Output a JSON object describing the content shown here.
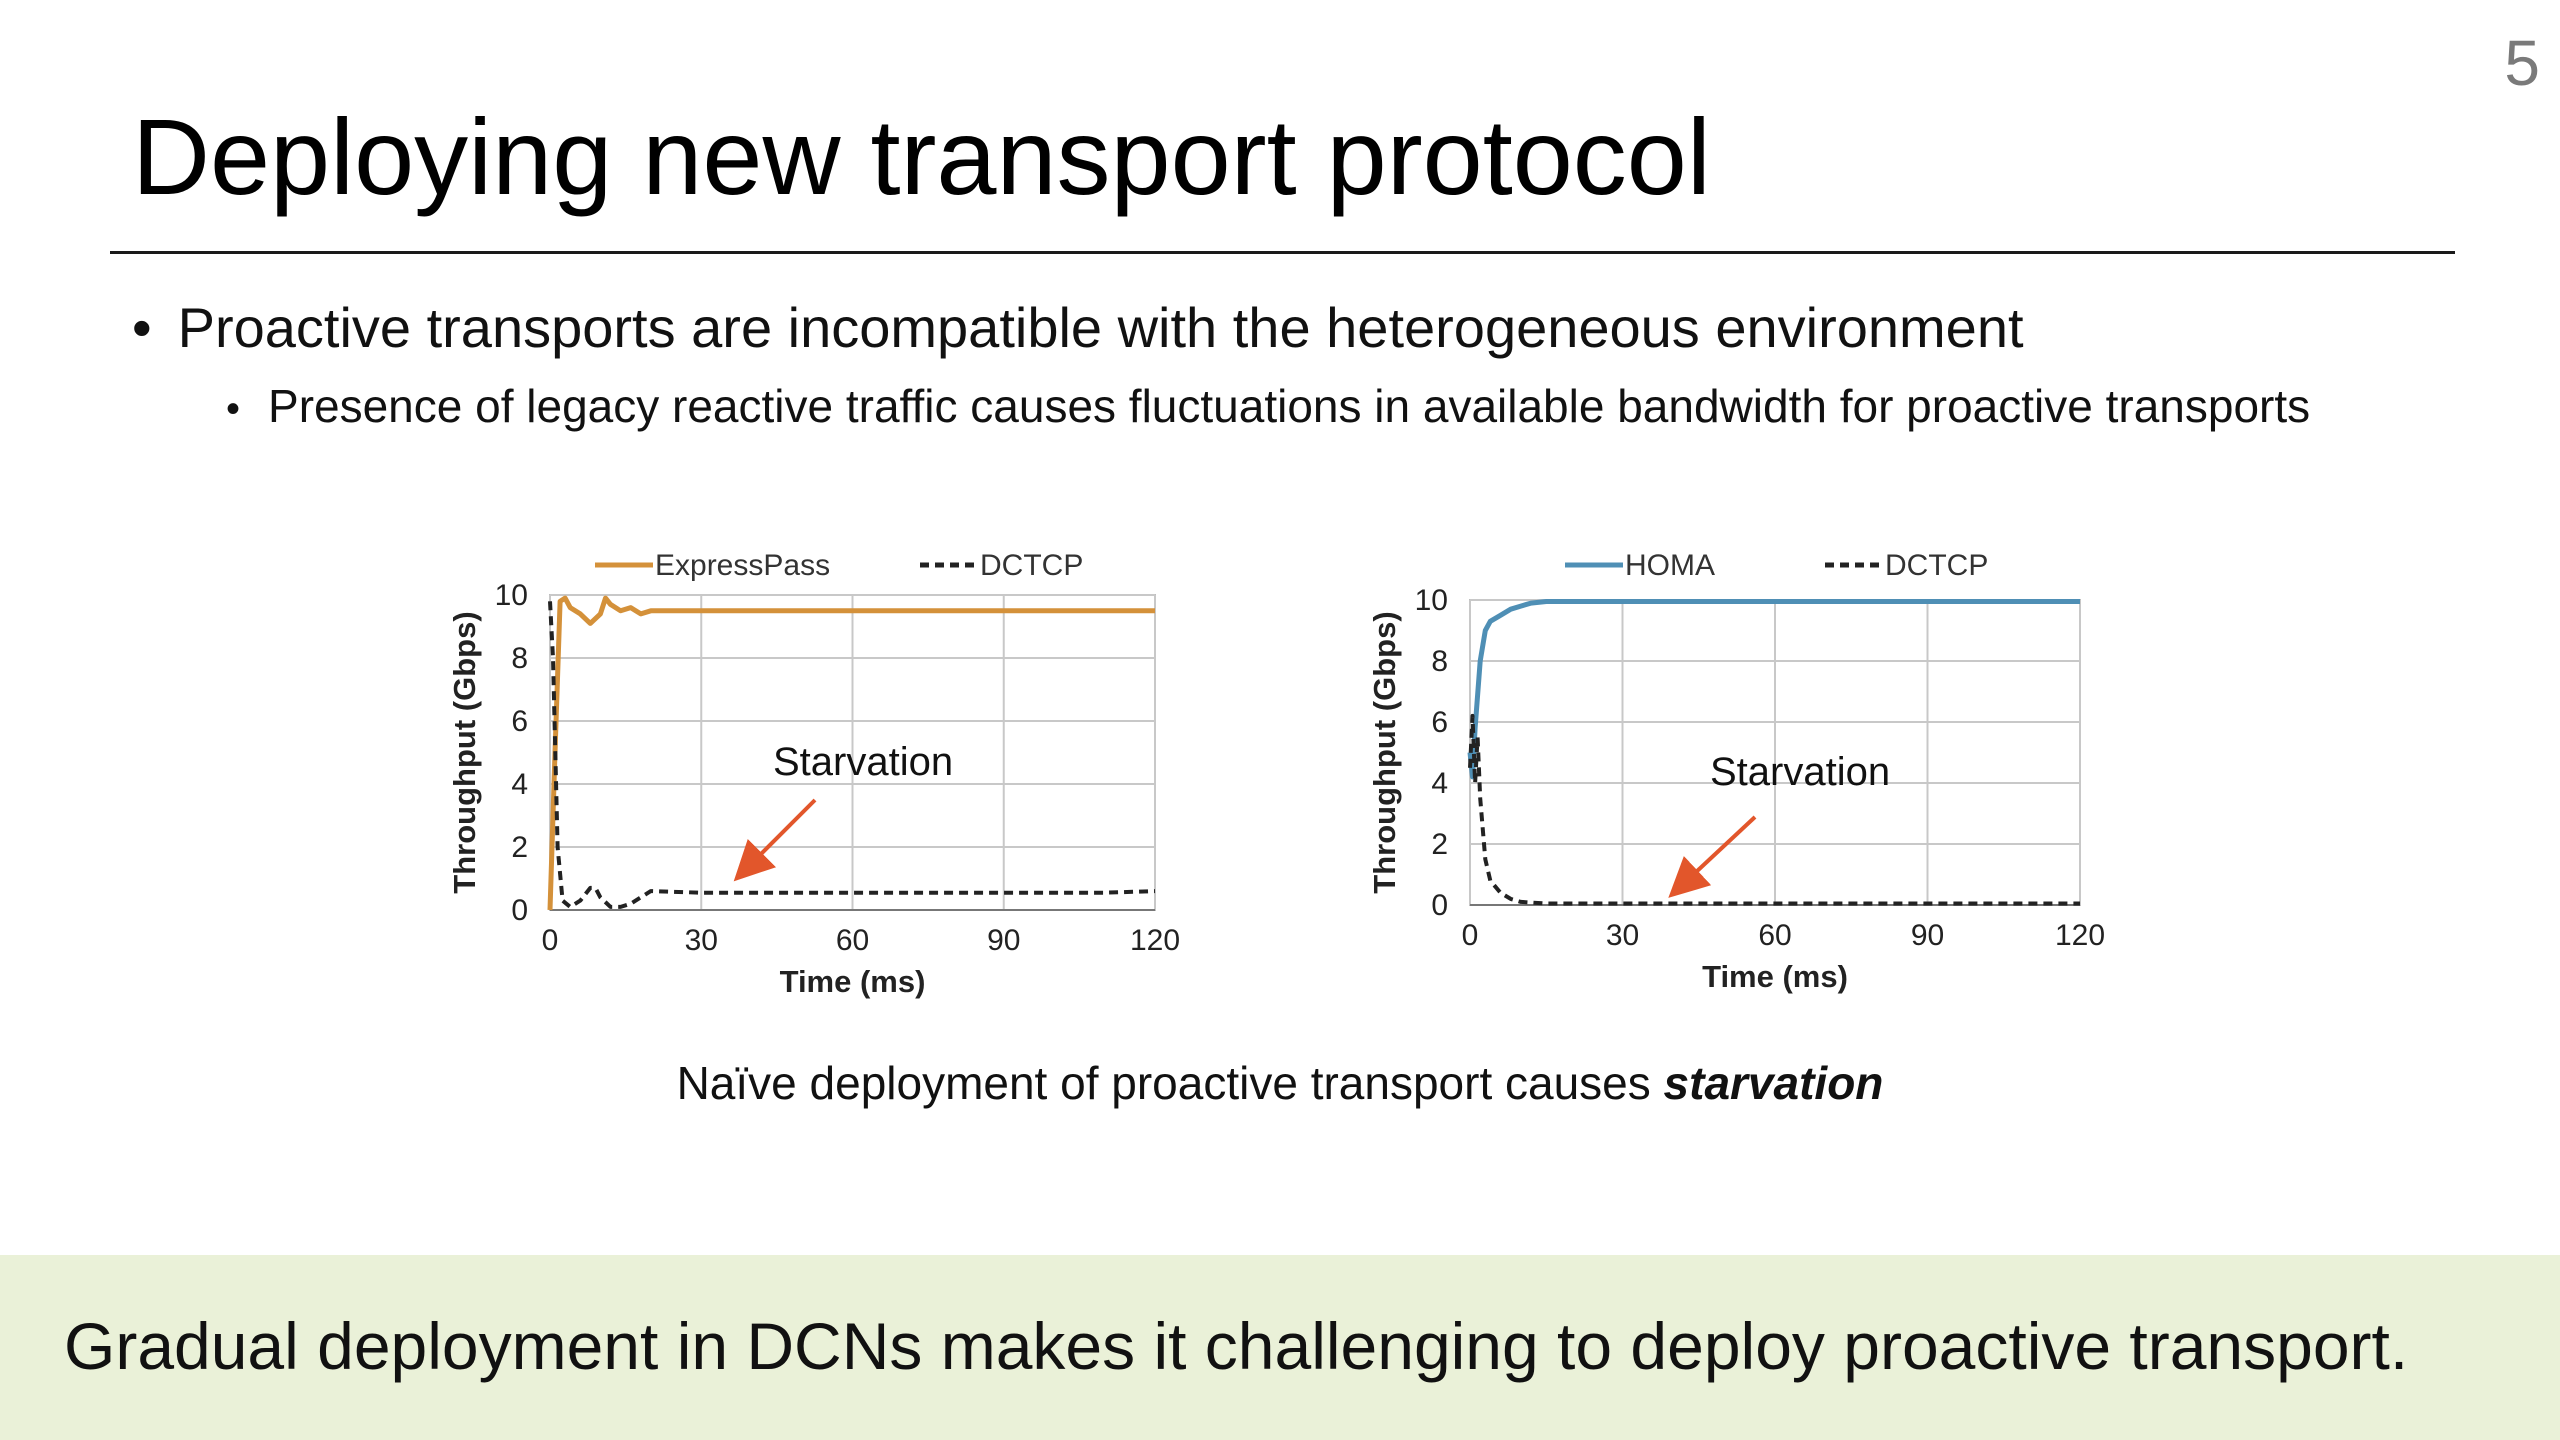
{
  "slide": {
    "page_number": "5",
    "title": "Deploying new transport protocol",
    "bullets": [
      "Proactive transports are incompatible with the heterogeneous environment",
      "Presence of legacy reactive traffic causes fluctuations in available bandwidth for proactive transports"
    ],
    "caption_prefix": "Naïve deployment of proactive transport causes ",
    "caption_emphasis": "starvation",
    "banner": "Gradual deployment in DCNs makes it challenging to deploy proactive transport."
  },
  "chart_data": [
    {
      "type": "line",
      "xlabel": "Time (ms)",
      "ylabel": "Throughput (Gbps)",
      "xlim": [
        0,
        120
      ],
      "ylim": [
        0,
        10
      ],
      "xticks": [
        0,
        30,
        60,
        90,
        120
      ],
      "yticks": [
        0,
        2,
        4,
        6,
        8,
        10
      ],
      "grid": true,
      "legend_position": "top",
      "annotation": "Starvation",
      "series": [
        {
          "name": "ExpressPass",
          "color": "#d4913a",
          "dashed": false,
          "x": [
            0,
            1,
            2,
            3,
            4,
            6,
            8,
            10,
            11,
            12,
            14,
            16,
            18,
            20,
            30,
            40,
            50,
            60,
            70,
            80,
            90,
            100,
            110,
            120
          ],
          "y": [
            0,
            5,
            9.8,
            9.9,
            9.6,
            9.4,
            9.1,
            9.4,
            9.9,
            9.7,
            9.5,
            9.6,
            9.4,
            9.5,
            9.5,
            9.5,
            9.5,
            9.5,
            9.5,
            9.5,
            9.5,
            9.5,
            9.5,
            9.5
          ]
        },
        {
          "name": "DCTCP",
          "color": "#222222",
          "dashed": true,
          "x": [
            0,
            0.6,
            1.5,
            2.5,
            4,
            6,
            8,
            9,
            10,
            12,
            14,
            16,
            20,
            30,
            40,
            50,
            60,
            70,
            80,
            90,
            100,
            110,
            120
          ],
          "y": [
            9.8,
            8,
            2,
            0.3,
            0.1,
            0.3,
            0.7,
            0.7,
            0.4,
            0.1,
            0.1,
            0.2,
            0.6,
            0.55,
            0.55,
            0.55,
            0.55,
            0.55,
            0.55,
            0.55,
            0.55,
            0.55,
            0.6
          ]
        }
      ]
    },
    {
      "type": "line",
      "xlabel": "Time (ms)",
      "ylabel": "Throughput (Gbps)",
      "xlim": [
        0,
        120
      ],
      "ylim": [
        0,
        10
      ],
      "xticks": [
        0,
        30,
        60,
        90,
        120
      ],
      "yticks": [
        0,
        2,
        4,
        6,
        8,
        10
      ],
      "grid": true,
      "legend_position": "top",
      "annotation": "Starvation",
      "series": [
        {
          "name": "HOMA",
          "color": "#4f8fb5",
          "dashed": false,
          "x": [
            0,
            0.5,
            1,
            2,
            3,
            4,
            6,
            8,
            10,
            12,
            15,
            20,
            30,
            60,
            90,
            120
          ],
          "y": [
            5,
            4.2,
            5.8,
            8,
            9,
            9.3,
            9.5,
            9.7,
            9.8,
            9.9,
            9.95,
            9.95,
            9.95,
            9.95,
            9.95,
            9.95
          ]
        },
        {
          "name": "DCTCP",
          "color": "#222222",
          "dashed": true,
          "x": [
            0,
            0.5,
            1,
            1.5,
            2,
            3,
            4,
            6,
            8,
            10,
            15,
            30,
            60,
            90,
            120
          ],
          "y": [
            4.5,
            6.2,
            4.0,
            5.5,
            3.5,
            1.5,
            0.8,
            0.4,
            0.2,
            0.1,
            0.05,
            0.05,
            0.05,
            0.05,
            0.05
          ]
        }
      ]
    }
  ]
}
